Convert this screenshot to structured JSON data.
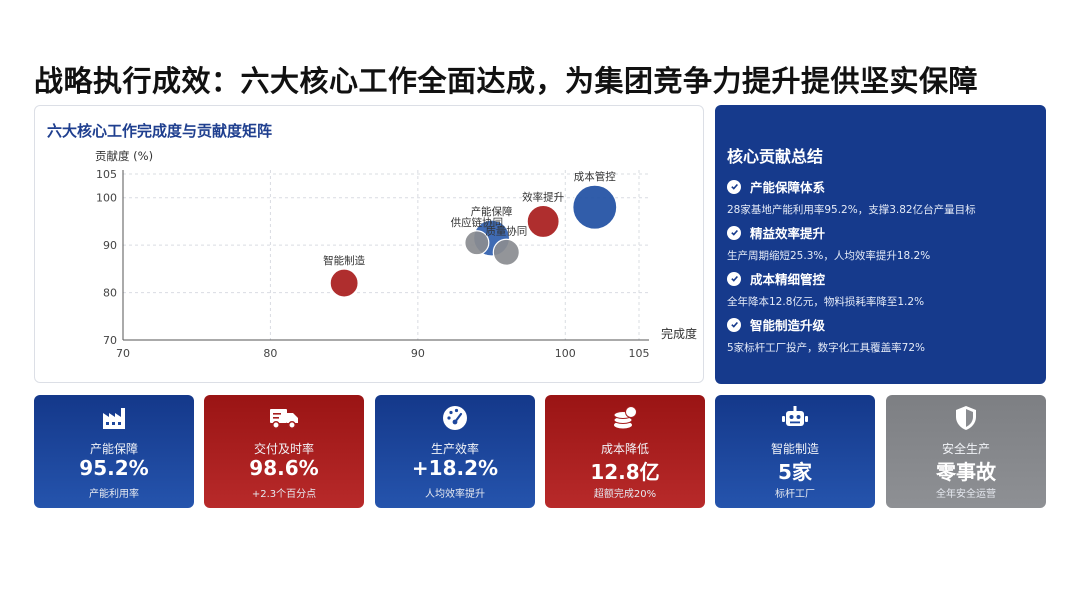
{
  "page": {
    "title": "战略执行成效：六大核心工作全面达成，为集团竞争力提升提供坚实保障"
  },
  "chart_data": {
    "type": "scatter",
    "title": "六大核心工作完成度与贡献度矩阵",
    "xlabel": "完成度",
    "ylabel": "贡献度 (%)",
    "xlim": [
      70,
      105
    ],
    "ylim": [
      70,
      105
    ],
    "xticks": [
      70,
      80,
      90,
      100,
      105
    ],
    "yticks": [
      70,
      80,
      90,
      100,
      105
    ],
    "grid": true,
    "points": [
      {
        "label": "智能制造",
        "x": 85,
        "y": 82,
        "size": 14,
        "color": "#a81c1c"
      },
      {
        "label": "供应链协同",
        "x": 94,
        "y": 90.5,
        "size": 12,
        "color": "#8a8c90"
      },
      {
        "label": "产能保障",
        "x": 95,
        "y": 91.5,
        "size": 18,
        "color": "#2f5eae"
      },
      {
        "label": "质量协同",
        "x": 96,
        "y": 88.5,
        "size": 13,
        "color": "#8a8c90"
      },
      {
        "label": "效率提升",
        "x": 98.5,
        "y": 95,
        "size": 16,
        "color": "#a81c1c"
      },
      {
        "label": "成本管控",
        "x": 102,
        "y": 98,
        "size": 22,
        "color": "#1f4fa3"
      }
    ]
  },
  "summary": {
    "title": "核心贡献总结",
    "items": [
      {
        "head": "产能保障体系",
        "desc": "28家基地产能利用率95.2%，支撑3.82亿台产量目标"
      },
      {
        "head": "精益效率提升",
        "desc": "生产周期缩短25.3%，人均效率提升18.2%"
      },
      {
        "head": "成本精细管控",
        "desc": "全年降本12.8亿元，物料损耗率降至1.2%"
      },
      {
        "head": "智能制造升级",
        "desc": "5家标杆工厂投产，数字化工具覆盖率72%"
      }
    ]
  },
  "kpis": [
    {
      "icon": "factory-icon",
      "label": "产能保障",
      "value": "95.2%",
      "sub": "产能利用率",
      "color": "blue"
    },
    {
      "icon": "truck-icon",
      "label": "交付及时率",
      "value": "98.6%",
      "sub": "+2.3个百分点",
      "color": "red"
    },
    {
      "icon": "gauge-icon",
      "label": "生产效率",
      "value": "+18.2%",
      "sub": "人均效率提升",
      "color": "blue"
    },
    {
      "icon": "coins-icon",
      "label": "成本降低",
      "value": "12.8亿",
      "sub": "超额完成20%",
      "color": "red"
    },
    {
      "icon": "robot-icon",
      "label": "智能制造",
      "value": "5家",
      "sub": "标杆工厂",
      "color": "blue"
    },
    {
      "icon": "shield-icon",
      "label": "安全生产",
      "value": "零事故",
      "sub": "全年安全运营",
      "color": "gray"
    }
  ]
}
